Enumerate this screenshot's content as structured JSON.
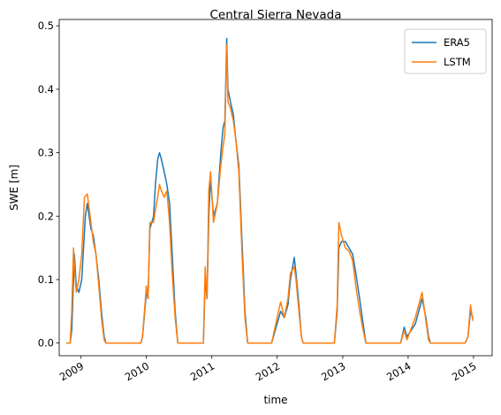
{
  "chart_data": {
    "type": "line",
    "title": "Central Sierra Nevada",
    "xlabel": "time",
    "ylabel": "SWE [m]",
    "x_type": "date",
    "xlim": [
      "2008-09-01",
      "2015-04-15"
    ],
    "ylim": [
      -0.02,
      0.51
    ],
    "x_ticks": [
      "2009-01-01",
      "2010-01-01",
      "2011-01-01",
      "2012-01-01",
      "2013-01-01",
      "2014-01-01",
      "2015-01-01"
    ],
    "x_tick_labels": [
      "2009",
      "2010",
      "2011",
      "2012",
      "2013",
      "2014",
      "2015"
    ],
    "y_ticks": [
      0.0,
      0.1,
      0.2,
      0.3,
      0.4,
      0.5
    ],
    "y_tick_labels": [
      "0.0",
      "0.1",
      "0.2",
      "0.3",
      "0.4",
      "0.5"
    ],
    "grid": false,
    "legend_position": "top-right",
    "series": [
      {
        "name": "ERA5",
        "color": "#1f77b4",
        "points": [
          [
            "2008-10-10",
            0.0
          ],
          [
            "2008-11-01",
            0.0
          ],
          [
            "2008-11-10",
            0.02
          ],
          [
            "2008-11-20",
            0.1
          ],
          [
            "2008-11-25",
            0.14
          ],
          [
            "2008-12-05",
            0.09
          ],
          [
            "2008-12-20",
            0.08
          ],
          [
            "2009-01-05",
            0.1
          ],
          [
            "2009-01-25",
            0.2
          ],
          [
            "2009-02-05",
            0.22
          ],
          [
            "2009-02-25",
            0.18
          ],
          [
            "2009-03-10",
            0.17
          ],
          [
            "2009-03-25",
            0.14
          ],
          [
            "2009-04-10",
            0.1
          ],
          [
            "2009-04-25",
            0.05
          ],
          [
            "2009-05-10",
            0.01
          ],
          [
            "2009-05-20",
            0.0
          ],
          [
            "2009-12-01",
            0.0
          ],
          [
            "2009-12-10",
            0.01
          ],
          [
            "2010-01-01",
            0.08
          ],
          [
            "2010-01-10",
            0.07
          ],
          [
            "2010-01-20",
            0.18
          ],
          [
            "2010-02-10",
            0.2
          ],
          [
            "2010-02-20",
            0.25
          ],
          [
            "2010-03-05",
            0.29
          ],
          [
            "2010-03-15",
            0.3
          ],
          [
            "2010-03-25",
            0.29
          ],
          [
            "2010-04-10",
            0.27
          ],
          [
            "2010-04-25",
            0.25
          ],
          [
            "2010-05-10",
            0.22
          ],
          [
            "2010-05-25",
            0.14
          ],
          [
            "2010-06-10",
            0.05
          ],
          [
            "2010-06-25",
            0.0
          ],
          [
            "2010-11-15",
            0.0
          ],
          [
            "2010-11-25",
            0.1
          ],
          [
            "2010-12-05",
            0.07
          ],
          [
            "2010-12-15",
            0.2
          ],
          [
            "2010-12-25",
            0.26
          ],
          [
            "2011-01-10",
            0.2
          ],
          [
            "2011-02-01",
            0.22
          ],
          [
            "2011-02-20",
            0.3
          ],
          [
            "2011-03-05",
            0.34
          ],
          [
            "2011-03-15",
            0.35
          ],
          [
            "2011-03-25",
            0.48
          ],
          [
            "2011-04-01",
            0.4
          ],
          [
            "2011-04-15",
            0.38
          ],
          [
            "2011-05-01",
            0.36
          ],
          [
            "2011-05-15",
            0.32
          ],
          [
            "2011-06-01",
            0.28
          ],
          [
            "2011-06-20",
            0.15
          ],
          [
            "2011-07-05",
            0.05
          ],
          [
            "2011-07-20",
            0.0
          ],
          [
            "2011-12-01",
            0.0
          ],
          [
            "2012-01-20",
            0.05
          ],
          [
            "2012-02-10",
            0.04
          ],
          [
            "2012-03-01",
            0.06
          ],
          [
            "2012-03-15",
            0.1
          ],
          [
            "2012-04-05",
            0.135
          ],
          [
            "2012-04-15",
            0.11
          ],
          [
            "2012-05-01",
            0.06
          ],
          [
            "2012-05-15",
            0.01
          ],
          [
            "2012-05-25",
            0.0
          ],
          [
            "2012-11-15",
            0.0
          ],
          [
            "2012-12-01",
            0.05
          ],
          [
            "2012-12-10",
            0.15
          ],
          [
            "2012-12-25",
            0.16
          ],
          [
            "2013-01-15",
            0.16
          ],
          [
            "2013-02-05",
            0.15
          ],
          [
            "2013-02-25",
            0.14
          ],
          [
            "2013-03-15",
            0.11
          ],
          [
            "2013-04-05",
            0.07
          ],
          [
            "2013-04-25",
            0.03
          ],
          [
            "2013-05-10",
            0.0
          ],
          [
            "2013-11-20",
            0.0
          ],
          [
            "2013-12-10",
            0.025
          ],
          [
            "2013-12-25",
            0.01
          ],
          [
            "2014-02-10",
            0.03
          ],
          [
            "2014-03-01",
            0.05
          ],
          [
            "2014-03-20",
            0.07
          ],
          [
            "2014-04-10",
            0.04
          ],
          [
            "2014-04-25",
            0.01
          ],
          [
            "2014-05-05",
            0.0
          ],
          [
            "2014-11-15",
            0.0
          ],
          [
            "2014-12-01",
            0.01
          ],
          [
            "2014-12-15",
            0.05
          ],
          [
            "2014-12-28",
            0.04
          ]
        ]
      },
      {
        "name": "LSTM",
        "color": "#ff7f0e",
        "points": [
          [
            "2008-10-10",
            0.0
          ],
          [
            "2008-11-01",
            0.0
          ],
          [
            "2008-11-10",
            0.05
          ],
          [
            "2008-11-20",
            0.15
          ],
          [
            "2008-11-25",
            0.12
          ],
          [
            "2008-12-05",
            0.08
          ],
          [
            "2008-12-20",
            0.1
          ],
          [
            "2009-01-05",
            0.14
          ],
          [
            "2009-01-20",
            0.23
          ],
          [
            "2009-02-05",
            0.235
          ],
          [
            "2009-02-25",
            0.19
          ],
          [
            "2009-03-10",
            0.16
          ],
          [
            "2009-03-25",
            0.14
          ],
          [
            "2009-04-10",
            0.09
          ],
          [
            "2009-04-25",
            0.04
          ],
          [
            "2009-05-10",
            0.005
          ],
          [
            "2009-05-20",
            0.0
          ],
          [
            "2009-12-01",
            0.0
          ],
          [
            "2009-12-10",
            0.01
          ],
          [
            "2010-01-01",
            0.09
          ],
          [
            "2010-01-10",
            0.07
          ],
          [
            "2010-01-20",
            0.19
          ],
          [
            "2010-02-10",
            0.19
          ],
          [
            "2010-02-20",
            0.21
          ],
          [
            "2010-03-05",
            0.23
          ],
          [
            "2010-03-15",
            0.25
          ],
          [
            "2010-03-25",
            0.24
          ],
          [
            "2010-04-10",
            0.23
          ],
          [
            "2010-04-25",
            0.24
          ],
          [
            "2010-05-10",
            0.19
          ],
          [
            "2010-05-25",
            0.11
          ],
          [
            "2010-06-10",
            0.04
          ],
          [
            "2010-06-25",
            0.0
          ],
          [
            "2010-11-15",
            0.0
          ],
          [
            "2010-11-25",
            0.12
          ],
          [
            "2010-12-05",
            0.07
          ],
          [
            "2010-12-15",
            0.24
          ],
          [
            "2010-12-25",
            0.27
          ],
          [
            "2011-01-10",
            0.19
          ],
          [
            "2011-02-01",
            0.22
          ],
          [
            "2011-02-20",
            0.28
          ],
          [
            "2011-03-05",
            0.31
          ],
          [
            "2011-03-15",
            0.33
          ],
          [
            "2011-03-25",
            0.47
          ],
          [
            "2011-04-01",
            0.38
          ],
          [
            "2011-04-15",
            0.37
          ],
          [
            "2011-05-01",
            0.35
          ],
          [
            "2011-05-15",
            0.32
          ],
          [
            "2011-06-01",
            0.27
          ],
          [
            "2011-06-20",
            0.13
          ],
          [
            "2011-07-05",
            0.04
          ],
          [
            "2011-07-20",
            0.0
          ],
          [
            "2011-12-01",
            0.0
          ],
          [
            "2012-01-20",
            0.065
          ],
          [
            "2012-02-10",
            0.04
          ],
          [
            "2012-03-01",
            0.07
          ],
          [
            "2012-03-15",
            0.11
          ],
          [
            "2012-04-05",
            0.12
          ],
          [
            "2012-04-15",
            0.1
          ],
          [
            "2012-05-01",
            0.05
          ],
          [
            "2012-05-15",
            0.01
          ],
          [
            "2012-05-25",
            0.0
          ],
          [
            "2012-11-15",
            0.0
          ],
          [
            "2012-12-01",
            0.06
          ],
          [
            "2012-12-10",
            0.19
          ],
          [
            "2012-12-25",
            0.17
          ],
          [
            "2013-01-15",
            0.15
          ],
          [
            "2013-02-05",
            0.145
          ],
          [
            "2013-02-25",
            0.13
          ],
          [
            "2013-03-15",
            0.09
          ],
          [
            "2013-04-05",
            0.05
          ],
          [
            "2013-04-25",
            0.02
          ],
          [
            "2013-05-10",
            0.0
          ],
          [
            "2013-11-20",
            0.0
          ],
          [
            "2013-12-10",
            0.02
          ],
          [
            "2013-12-25",
            0.005
          ],
          [
            "2014-02-10",
            0.04
          ],
          [
            "2014-03-01",
            0.06
          ],
          [
            "2014-03-20",
            0.08
          ],
          [
            "2014-04-10",
            0.035
          ],
          [
            "2014-04-25",
            0.005
          ],
          [
            "2014-05-05",
            0.0
          ],
          [
            "2014-11-15",
            0.0
          ],
          [
            "2014-12-01",
            0.01
          ],
          [
            "2014-12-15",
            0.06
          ],
          [
            "2014-12-28",
            0.035
          ]
        ]
      }
    ]
  }
}
